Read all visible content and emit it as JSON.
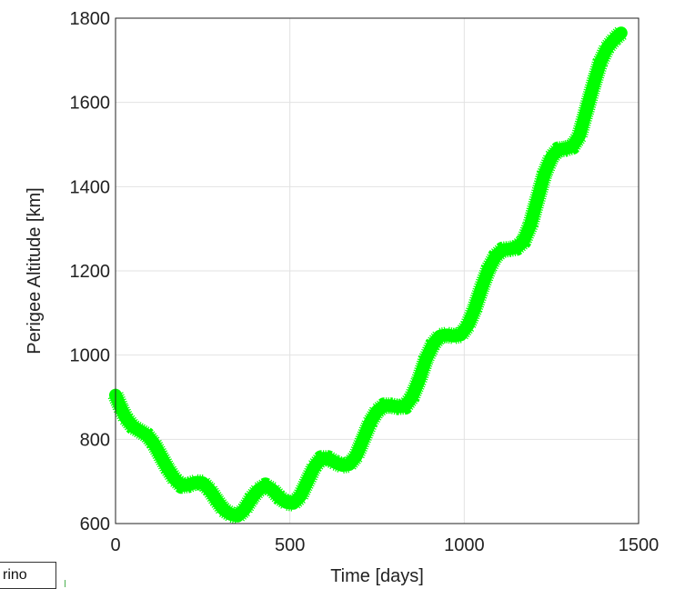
{
  "chart_data": {
    "type": "line",
    "title": "",
    "xlabel": "Time [days]",
    "ylabel": "Perigee Altitude [km]",
    "xlim": [
      0,
      1500
    ],
    "ylim": [
      600,
      1800
    ],
    "xticks": [
      0,
      500,
      1000,
      1500
    ],
    "yticks": [
      600,
      800,
      1000,
      1200,
      1400,
      1600,
      1800
    ],
    "grid": true,
    "series": [
      {
        "color": "#00ff00",
        "x": [
          0,
          15,
          30,
          50,
          70,
          90,
          110,
          130,
          150,
          170,
          190,
          210,
          230,
          250,
          270,
          290,
          310,
          330,
          350,
          370,
          390,
          410,
          430,
          450,
          470,
          490,
          510,
          530,
          550,
          570,
          590,
          610,
          630,
          650,
          670,
          690,
          710,
          730,
          750,
          770,
          790,
          810,
          830,
          850,
          870,
          890,
          910,
          930,
          950,
          970,
          990,
          1010,
          1030,
          1050,
          1070,
          1090,
          1110,
          1130,
          1150,
          1170,
          1190,
          1210,
          1230,
          1250,
          1270,
          1290,
          1310,
          1330,
          1350,
          1370,
          1390,
          1410,
          1430,
          1450
        ],
        "y": [
          905,
          875,
          850,
          830,
          820,
          810,
          790,
          760,
          730,
          705,
          690,
          692,
          698,
          697,
          680,
          655,
          633,
          622,
          618,
          633,
          660,
          680,
          690,
          680,
          662,
          650,
          648,
          665,
          700,
          735,
          755,
          755,
          745,
          738,
          740,
          760,
          800,
          840,
          867,
          880,
          880,
          877,
          878,
          900,
          940,
          990,
          1025,
          1045,
          1048,
          1045,
          1048,
          1070,
          1110,
          1160,
          1205,
          1235,
          1250,
          1252,
          1255,
          1270,
          1310,
          1370,
          1430,
          1470,
          1488,
          1490,
          1495,
          1520,
          1580,
          1640,
          1695,
          1730,
          1750,
          1765
        ]
      }
    ]
  },
  "fragment": {
    "text": "rino"
  }
}
